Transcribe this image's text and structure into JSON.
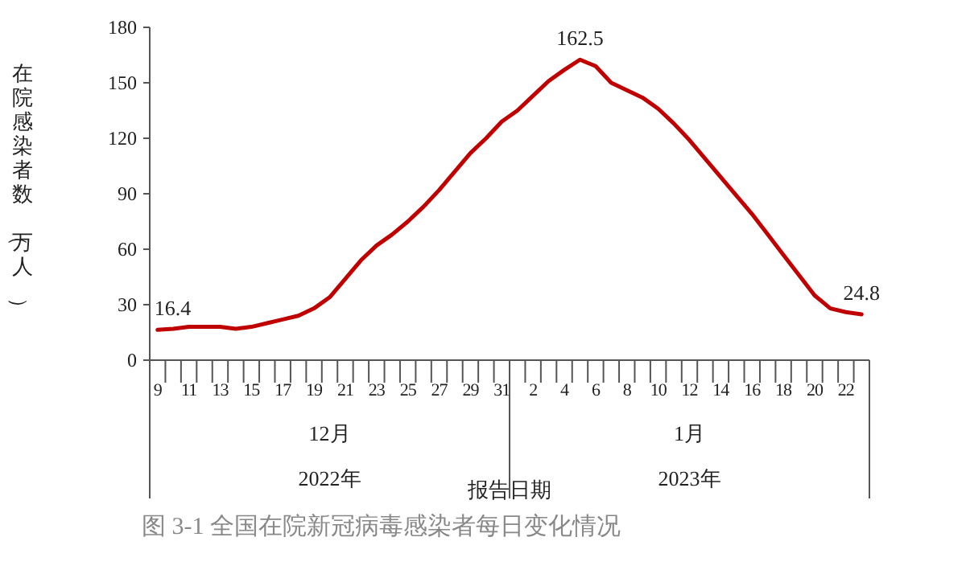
{
  "chart_data": {
    "type": "line",
    "ylabel": "在院感染者数（万人）",
    "xlabel": "报告日期",
    "categories": [
      "9",
      null,
      "11",
      null,
      "13",
      null,
      "15",
      null,
      "17",
      null,
      "19",
      null,
      "21",
      null,
      "23",
      null,
      "25",
      null,
      "27",
      null,
      "29",
      null,
      "31",
      null,
      "2",
      null,
      "4",
      null,
      "6",
      null,
      "8",
      null,
      "10",
      null,
      "12",
      null,
      "14",
      null,
      "16",
      null,
      "18",
      null,
      "20",
      null,
      "22",
      null
    ],
    "values": [
      16.4,
      17,
      18,
      18,
      18,
      17,
      18,
      20,
      22,
      24,
      28,
      34,
      44,
      54,
      62,
      68,
      75,
      83,
      92,
      102,
      112,
      120,
      129,
      135,
      143,
      151,
      157,
      162.5,
      159,
      150,
      146,
      142,
      136,
      128,
      119,
      109,
      99,
      89,
      79,
      68,
      57,
      46,
      35,
      28,
      26,
      24.8
    ],
    "value_labels": [
      "16.4",
      null,
      null,
      null,
      null,
      null,
      null,
      null,
      null,
      null,
      null,
      null,
      null,
      null,
      null,
      null,
      null,
      null,
      null,
      null,
      null,
      null,
      null,
      null,
      null,
      null,
      null,
      "162.5",
      null,
      null,
      null,
      null,
      null,
      null,
      null,
      null,
      null,
      null,
      null,
      null,
      null,
      null,
      null,
      null,
      null,
      "24.8"
    ],
    "color": "#c00000",
    "ylim": [
      0,
      180
    ],
    "yticks": [
      0,
      30,
      60,
      90,
      120,
      150,
      180
    ],
    "annotations": [
      "12月",
      "1月",
      "2022年",
      "2023年",
      "图 3-1 全国在院新冠病毒感染者每日变化情况"
    ]
  }
}
